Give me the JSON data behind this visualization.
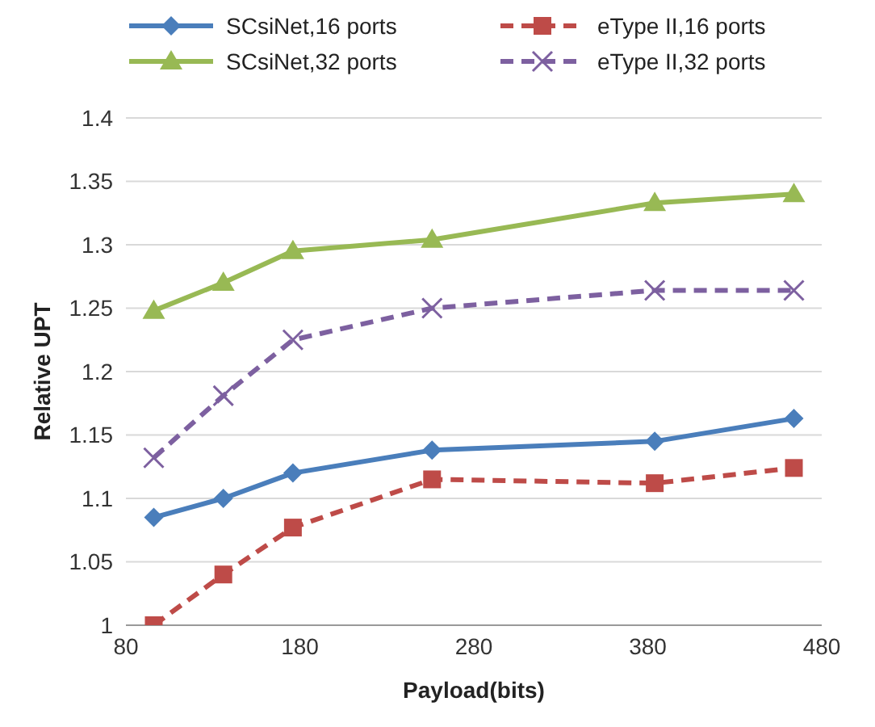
{
  "chart_data": {
    "type": "line",
    "xlabel": "Payload(bits)",
    "ylabel": "Relative UPT",
    "x": [
      96,
      136,
      176,
      256,
      384,
      464
    ],
    "xlim": [
      80,
      480
    ],
    "xticks": [
      80,
      180,
      280,
      380,
      480
    ],
    "ylim": [
      1,
      1.4
    ],
    "yticks": [
      1,
      1.05,
      1.1,
      1.15,
      1.2,
      1.25,
      1.3,
      1.35,
      1.4
    ],
    "grid": "y",
    "legend": "top",
    "series": [
      {
        "name": "SCsiNet,16 ports",
        "color": "#4a7ebb",
        "marker": "diamond",
        "line_style": "solid",
        "values": [
          1.085,
          1.1,
          1.12,
          1.138,
          1.145,
          1.163
        ]
      },
      {
        "name": "eType II,16 ports",
        "color": "#be4b48",
        "marker": "square",
        "line_style": "dashed",
        "values": [
          1.0,
          1.04,
          1.077,
          1.115,
          1.112,
          1.124
        ]
      },
      {
        "name": "SCsiNet,32 ports",
        "color": "#98b954",
        "marker": "triangle",
        "line_style": "solid",
        "values": [
          1.248,
          1.27,
          1.295,
          1.304,
          1.333,
          1.34
        ]
      },
      {
        "name": "eType II,32 ports",
        "color": "#7d60a0",
        "marker": "cross",
        "line_style": "dashed",
        "values": [
          1.132,
          1.181,
          1.225,
          1.25,
          1.264,
          1.264
        ]
      }
    ]
  }
}
